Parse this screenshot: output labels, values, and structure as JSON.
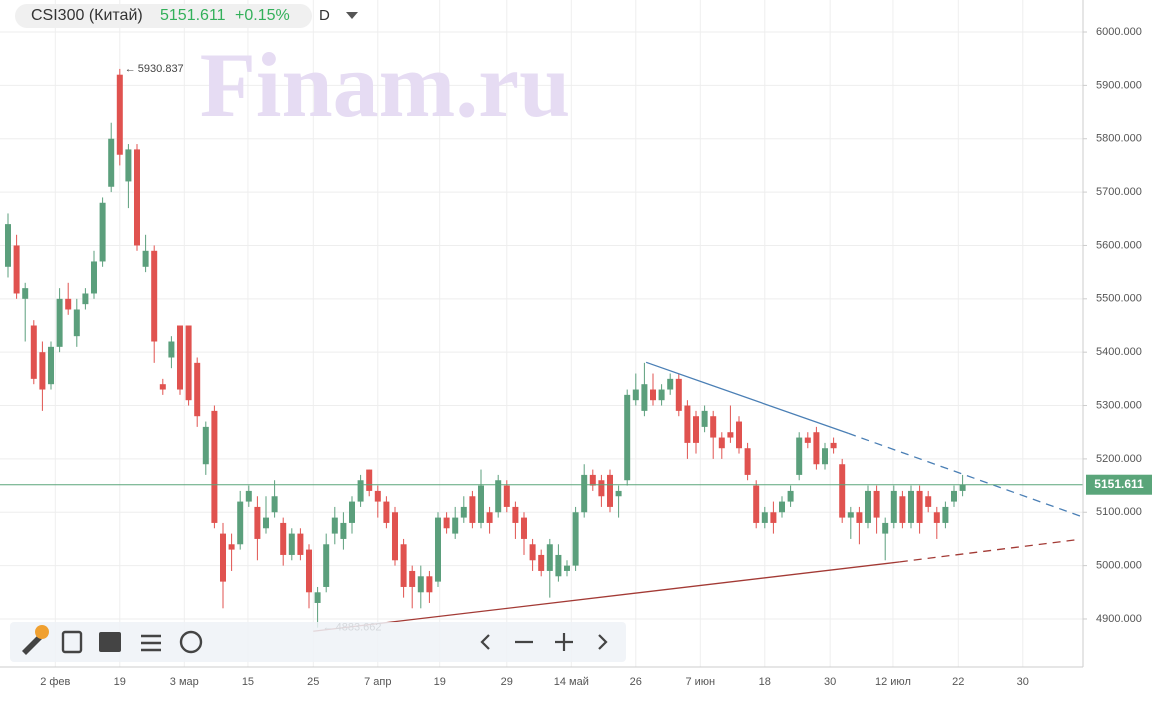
{
  "chart_data": {
    "type": "candlestick",
    "title": "CSI300 (Китай)",
    "change": 0.15,
    "change_label": "+0.15%",
    "interval": "D",
    "watermark": "Finam.ru",
    "up_color": "#5b9f7c",
    "down_color": "#e0524f",
    "price_line_color": "#5aa57a",
    "grid": true,
    "xlim": [
      -0.93,
      125
    ],
    "ylim": [
      4810,
      6060
    ],
    "xticks": [
      {
        "value": 5.5,
        "label": "2 фев"
      },
      {
        "value": 13,
        "label": "19"
      },
      {
        "value": 20.5,
        "label": "3 мар"
      },
      {
        "value": 27.9,
        "label": "15"
      },
      {
        "value": 35.5,
        "label": "25"
      },
      {
        "value": 43,
        "label": "7 апр"
      },
      {
        "value": 50.2,
        "label": "19"
      },
      {
        "value": 58,
        "label": "29"
      },
      {
        "value": 65.5,
        "label": "14 май"
      },
      {
        "value": 73,
        "label": "26"
      },
      {
        "value": 80.5,
        "label": "7 июн"
      },
      {
        "value": 88,
        "label": "18"
      },
      {
        "value": 95.6,
        "label": "30"
      },
      {
        "value": 102.9,
        "label": "12 июл"
      },
      {
        "value": 110.5,
        "label": "22"
      },
      {
        "value": 118,
        "label": "30"
      }
    ],
    "yticks": [
      {
        "value": 4900,
        "label": "4900.000"
      },
      {
        "value": 5000,
        "label": "5000.000"
      },
      {
        "value": 5100,
        "label": "5100.000"
      },
      {
        "value": 5200,
        "label": "5200.000"
      },
      {
        "value": 5300,
        "label": "5300.000"
      },
      {
        "value": 5400,
        "label": "5400.000"
      },
      {
        "value": 5500,
        "label": "5500.000"
      },
      {
        "value": 5600,
        "label": "5600.000"
      },
      {
        "value": 5700,
        "label": "5700.000"
      },
      {
        "value": 5800,
        "label": "5800.000"
      },
      {
        "value": 5900,
        "label": "5900.000"
      },
      {
        "value": 6000,
        "label": "6000.000"
      }
    ],
    "open": [
      5560,
      5600,
      5500,
      5450,
      5400,
      5340,
      5410,
      5500,
      5430,
      5490,
      5510,
      5570,
      5710,
      5920,
      5720,
      5780,
      5560,
      5590,
      5340,
      5390,
      5450,
      5450,
      5380,
      5190,
      5290,
      5060,
      5040,
      5040,
      5120,
      5110,
      5070,
      5100,
      5080,
      5020,
      5060,
      5030,
      4930,
      4960,
      5060,
      5050,
      5080,
      5120,
      5180,
      5140,
      5120,
      5100,
      5040,
      4990,
      4950,
      4980,
      4970,
      5090,
      5060,
      5090,
      5130,
      5080,
      5100,
      5100,
      5150,
      5110,
      5090,
      5040,
      5020,
      4990,
      4980,
      4990,
      5000,
      5100,
      5170,
      5160,
      5170,
      5130,
      5160,
      5310,
      5290,
      5330,
      5310,
      5330,
      5350,
      5300,
      5280,
      5260,
      5280,
      5240,
      5250,
      5270,
      5220,
      5150,
      5080,
      5100,
      5100,
      5120,
      5170,
      5240,
      5250,
      5190,
      5230,
      5190,
      5090,
      5100,
      5080,
      5140,
      5060,
      5080,
      5130,
      5080,
      5140,
      5130,
      5100,
      5080,
      5120,
      5140
    ],
    "close": [
      5640,
      5510,
      5520,
      5350,
      5330,
      5410,
      5500,
      5480,
      5480,
      5510,
      5570,
      5680,
      5800,
      5770,
      5780,
      5600,
      5590,
      5420,
      5330,
      5420,
      5330,
      5310,
      5280,
      5260,
      5080,
      4970,
      5030,
      5120,
      5140,
      5050,
      5090,
      5130,
      5020,
      5060,
      5020,
      4950,
      4950,
      5040,
      5090,
      5080,
      5120,
      5160,
      5140,
      5120,
      5080,
      5010,
      4960,
      4960,
      4980,
      4950,
      5090,
      5070,
      5090,
      5110,
      5080,
      5150,
      5080,
      5160,
      5110,
      5080,
      5050,
      5010,
      4990,
      5040,
      5020,
      5000,
      5100,
      5170,
      5150,
      5130,
      5110,
      5140,
      5320,
      5330,
      5340,
      5310,
      5330,
      5350,
      5290,
      5230,
      5230,
      5290,
      5240,
      5220,
      5240,
      5220,
      5170,
      5080,
      5100,
      5080,
      5120,
      5140,
      5240,
      5230,
      5190,
      5220,
      5220,
      5090,
      5100,
      5080,
      5140,
      5090,
      5080,
      5140,
      5080,
      5140,
      5080,
      5110,
      5080,
      5110,
      5140,
      5151.611
    ],
    "high": [
      5660,
      5620,
      5530,
      5460,
      5420,
      5420,
      5520,
      5530,
      5500,
      5520,
      5590,
      5690,
      5830,
      5930.837,
      5790,
      5790,
      5620,
      5600,
      5350,
      5430,
      5450,
      5450,
      5390,
      5270,
      5300,
      5080,
      5060,
      5140,
      5150,
      5130,
      5130,
      5160,
      5090,
      5070,
      5070,
      5040,
      4960,
      5060,
      5110,
      5100,
      5130,
      5170,
      5180,
      5150,
      5130,
      5110,
      5050,
      5000,
      5000,
      4990,
      5100,
      5100,
      5110,
      5130,
      5140,
      5180,
      5110,
      5170,
      5160,
      5120,
      5100,
      5050,
      5030,
      5050,
      5040,
      5010,
      5110,
      5190,
      5180,
      5170,
      5180,
      5150,
      5330,
      5360,
      5380,
      5360,
      5340,
      5360,
      5360,
      5310,
      5290,
      5300,
      5290,
      5250,
      5300,
      5280,
      5230,
      5160,
      5110,
      5120,
      5130,
      5150,
      5250,
      5250,
      5260,
      5230,
      5240,
      5200,
      5110,
      5110,
      5150,
      5150,
      5090,
      5150,
      5140,
      5150,
      5150,
      5140,
      5110,
      5120,
      5150,
      5170
    ],
    "low": [
      5540,
      5500,
      5420,
      5340,
      5290,
      5330,
      5400,
      5470,
      5410,
      5480,
      5500,
      5560,
      5700,
      5750,
      5670,
      5590,
      5550,
      5380,
      5320,
      5370,
      5320,
      5300,
      5260,
      5170,
      5070,
      4920,
      4990,
      5030,
      5110,
      5010,
      5060,
      5090,
      5000,
      5010,
      5010,
      4920,
      4883.662,
      4950,
      5040,
      5030,
      5060,
      5110,
      5130,
      5090,
      5070,
      5000,
      4940,
      4920,
      4920,
      4930,
      4960,
      5060,
      5050,
      5080,
      5070,
      5070,
      5060,
      5090,
      5100,
      5050,
      5020,
      4990,
      4980,
      4940,
      4970,
      4980,
      4990,
      5090,
      5140,
      5110,
      5100,
      5090,
      5150,
      5300,
      5280,
      5300,
      5300,
      5320,
      5280,
      5200,
      5210,
      5250,
      5200,
      5200,
      5230,
      5210,
      5160,
      5070,
      5070,
      5060,
      5090,
      5110,
      5160,
      5220,
      5180,
      5180,
      5210,
      5080,
      5050,
      5040,
      5070,
      5060,
      5010,
      5070,
      5070,
      5070,
      5060,
      5100,
      5050,
      5070,
      5110,
      5130
    ],
    "trendlines": [
      {
        "color": "#4a7fb5",
        "points": [
          [
            74.2,
            5381
          ],
          [
            97.7,
            5248
          ]
        ],
        "extension": [
          125,
          5091
        ]
      },
      {
        "color": "#a33a35",
        "points": [
          [
            35.5,
            4877
          ],
          [
            103.7,
            5007
          ]
        ],
        "extension": [
          124,
          5048
        ]
      }
    ]
  }
}
